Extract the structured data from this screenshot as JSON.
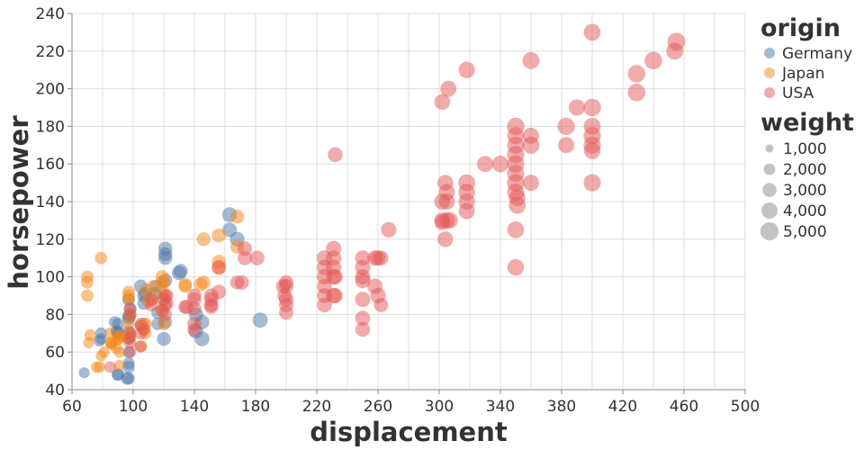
{
  "chart_data": {
    "type": "scatter",
    "xlabel": "displacement",
    "ylabel": "horsepower",
    "xlim": [
      60,
      500
    ],
    "ylim": [
      40,
      240
    ],
    "x_ticks": [
      60,
      100,
      140,
      180,
      220,
      260,
      300,
      340,
      380,
      420,
      460,
      500
    ],
    "x_tick_labels": [
      "60",
      "100",
      "140",
      "180",
      "220",
      "260",
      "300",
      "340",
      "380",
      "420",
      "460",
      "500"
    ],
    "y_ticks": [
      40,
      60,
      80,
      100,
      120,
      140,
      160,
      180,
      200,
      220,
      240
    ],
    "y_tick_labels": [
      "40",
      "60",
      "80",
      "100",
      "120",
      "140",
      "160",
      "180",
      "200",
      "220",
      "240"
    ],
    "x_grid_values": [
      60,
      80,
      100,
      120,
      140,
      160,
      180,
      200,
      220,
      240,
      260,
      280,
      300,
      320,
      340,
      360,
      380,
      400,
      420,
      440,
      460,
      480,
      500
    ],
    "grid": true,
    "color_field": "origin",
    "size_field": "weight",
    "legend_placement": "right",
    "legend": {
      "color_title": "origin",
      "color_entries": [
        {
          "name": "Germany",
          "color": "#4c78a8"
        },
        {
          "name": "Japan",
          "color": "#f58518"
        },
        {
          "name": "USA",
          "color": "#e45756"
        }
      ],
      "size_title": "weight",
      "size_entries": [
        {
          "label": "1,000",
          "value": 1000
        },
        {
          "label": "2,000",
          "value": 2000
        },
        {
          "label": "3,000",
          "value": 3000
        },
        {
          "label": "4,000",
          "value": 4000
        },
        {
          "label": "5,000",
          "value": 5000
        }
      ]
    },
    "series": [
      {
        "name": "Germany",
        "color": "#4c78a8",
        "points": [
          [
            68,
            49,
            1800
          ],
          [
            78,
            66,
            2000
          ],
          [
            79,
            67,
            1950
          ],
          [
            79,
            70,
            2050
          ],
          [
            88,
            76,
            2100
          ],
          [
            89,
            71,
            2200
          ],
          [
            90,
            48,
            2300
          ],
          [
            90,
            48,
            2150
          ],
          [
            90,
            70,
            2250
          ],
          [
            90,
            71,
            2200
          ],
          [
            90,
            75,
            2100
          ],
          [
            96,
            46,
            2400
          ],
          [
            97,
            46,
            2350
          ],
          [
            97,
            52,
            2300
          ],
          [
            97,
            54,
            2200
          ],
          [
            97,
            60,
            2250
          ],
          [
            97,
            67,
            2100
          ],
          [
            97,
            71,
            2300
          ],
          [
            97,
            78,
            2700
          ],
          [
            97,
            79,
            2400
          ],
          [
            97,
            88,
            2500
          ],
          [
            98,
            79,
            2250
          ],
          [
            98,
            83,
            2450
          ],
          [
            105,
            74,
            2200
          ],
          [
            105,
            95,
            2800
          ],
          [
            107,
            86,
            2650
          ],
          [
            107,
            90,
            2700
          ],
          [
            108,
            91,
            2650
          ],
          [
            114,
            91,
            2600
          ],
          [
            115,
            95,
            2700
          ],
          [
            116,
            75,
            2400
          ],
          [
            116,
            81,
            2450
          ],
          [
            120,
            67,
            2900
          ],
          [
            120,
            88,
            2800
          ],
          [
            121,
            76,
            2750
          ],
          [
            121,
            98,
            2950
          ],
          [
            121,
            110,
            2900
          ],
          [
            121,
            112,
            2950
          ],
          [
            121,
            115,
            3000
          ],
          [
            130,
            102,
            3150
          ],
          [
            131,
            103,
            3100
          ],
          [
            141,
            71,
            3200
          ],
          [
            141,
            80,
            3150
          ],
          [
            145,
            67,
            3250
          ],
          [
            145,
            76,
            3200
          ],
          [
            163,
            125,
            3150
          ],
          [
            163,
            133,
            3400
          ],
          [
            168,
            120,
            3250
          ],
          [
            183,
            77,
            3550
          ]
        ]
      },
      {
        "name": "Japan",
        "color": "#f58518",
        "points": [
          [
            70,
            90,
            2300
          ],
          [
            70,
            97,
            2350
          ],
          [
            70,
            100,
            2400
          ],
          [
            71,
            65,
            1900
          ],
          [
            72,
            69,
            2100
          ],
          [
            76,
            52,
            1950
          ],
          [
            78,
            52,
            2000
          ],
          [
            79,
            58,
            1800
          ],
          [
            79,
            110,
            2300
          ],
          [
            81,
            60,
            1900
          ],
          [
            85,
            65,
            2000
          ],
          [
            85,
            70,
            2050
          ],
          [
            86,
            64,
            1900
          ],
          [
            86,
            65,
            2100
          ],
          [
            89,
            62,
            2000
          ],
          [
            90,
            67,
            2100
          ],
          [
            91,
            53,
            1800
          ],
          [
            91,
            60,
            1900
          ],
          [
            91,
            67,
            1950
          ],
          [
            91,
            68,
            2000
          ],
          [
            91,
            69,
            2050
          ],
          [
            97,
            67,
            2100
          ],
          [
            97,
            75,
            2200
          ],
          [
            97,
            88,
            2150
          ],
          [
            97,
            90,
            2300
          ],
          [
            97,
            92,
            2300
          ],
          [
            98,
            68,
            2100
          ],
          [
            98,
            70,
            2150
          ],
          [
            98,
            80,
            2300
          ],
          [
            105,
            63,
            2200
          ],
          [
            105,
            74,
            2250
          ],
          [
            107,
            72,
            2300
          ],
          [
            107,
            75,
            2250
          ],
          [
            108,
            70,
            2300
          ],
          [
            108,
            75,
            2400
          ],
          [
            108,
            93,
            2400
          ],
          [
            110,
            87,
            2600
          ],
          [
            112,
            88,
            2400
          ],
          [
            113,
            95,
            2300
          ],
          [
            119,
            82,
            2600
          ],
          [
            119,
            92,
            2700
          ],
          [
            119,
            97,
            2600
          ],
          [
            119,
            100,
            2750
          ],
          [
            120,
            75,
            2600
          ],
          [
            120,
            88,
            2700
          ],
          [
            120,
            97,
            2500
          ],
          [
            134,
            95,
            2650
          ],
          [
            134,
            96,
            2700
          ],
          [
            144,
            96,
            2800
          ],
          [
            146,
            97,
            2800
          ],
          [
            146,
            120,
            2900
          ],
          [
            156,
            105,
            2900
          ],
          [
            156,
            108,
            2950
          ],
          [
            156,
            122,
            2950
          ],
          [
            168,
            116,
            2900
          ],
          [
            168,
            132,
            2950
          ]
        ]
      },
      {
        "name": "USA",
        "color": "#e45756",
        "points": [
          [
            85,
            52,
            2000
          ],
          [
            98,
            60,
            2100
          ],
          [
            98,
            65,
            2200
          ],
          [
            98,
            68,
            2200
          ],
          [
            98,
            70,
            2300
          ],
          [
            98,
            80,
            2300
          ],
          [
            98,
            83,
            2300
          ],
          [
            105,
            63,
            2200
          ],
          [
            105,
            70,
            2300
          ],
          [
            105,
            75,
            2300
          ],
          [
            107,
            72,
            2300
          ],
          [
            112,
            85,
            2600
          ],
          [
            112,
            88,
            2600
          ],
          [
            119,
            82,
            2700
          ],
          [
            121,
            80,
            2600
          ],
          [
            121,
            85,
            2700
          ],
          [
            121,
            90,
            2600
          ],
          [
            122,
            86,
            2700
          ],
          [
            122,
            90,
            2700
          ],
          [
            134,
            84,
            2900
          ],
          [
            135,
            84,
            2900
          ],
          [
            140,
            72,
            3000
          ],
          [
            140,
            75,
            3000
          ],
          [
            140,
            83,
            2950
          ],
          [
            140,
            88,
            3000
          ],
          [
            140,
            90,
            2900
          ],
          [
            151,
            84,
            3000
          ],
          [
            151,
            85,
            3000
          ],
          [
            151,
            88,
            3100
          ],
          [
            151,
            90,
            3100
          ],
          [
            156,
            92,
            3100
          ],
          [
            156,
            105,
            3200
          ],
          [
            168,
            97,
            3000
          ],
          [
            171,
            97,
            3100
          ],
          [
            173,
            110,
            3100
          ],
          [
            173,
            115,
            3100
          ],
          [
            181,
            110,
            3300
          ],
          [
            198,
            95,
            3100
          ],
          [
            199,
            90,
            3200
          ],
          [
            200,
            81,
            3100
          ],
          [
            200,
            85,
            3100
          ],
          [
            200,
            88,
            3200
          ],
          [
            200,
            95,
            3200
          ],
          [
            200,
            97,
            3200
          ],
          [
            225,
            85,
            3400
          ],
          [
            225,
            90,
            3400
          ],
          [
            225,
            95,
            3400
          ],
          [
            225,
            100,
            3500
          ],
          [
            225,
            105,
            3500
          ],
          [
            225,
            110,
            3600
          ],
          [
            231,
            90,
            3600
          ],
          [
            231,
            100,
            3600
          ],
          [
            231,
            105,
            3600
          ],
          [
            231,
            110,
            3600
          ],
          [
            231,
            115,
            3600
          ],
          [
            232,
            90,
            3500
          ],
          [
            232,
            100,
            3500
          ],
          [
            232,
            165,
            3400
          ],
          [
            250,
            72,
            3300
          ],
          [
            250,
            78,
            3400
          ],
          [
            250,
            88,
            3500
          ],
          [
            250,
            98,
            3500
          ],
          [
            250,
            100,
            3500
          ],
          [
            250,
            105,
            3500
          ],
          [
            250,
            110,
            3500
          ],
          [
            258,
            95,
            3500
          ],
          [
            258,
            110,
            3600
          ],
          [
            260,
            90,
            3600
          ],
          [
            260,
            110,
            3600
          ],
          [
            262,
            85,
            3100
          ],
          [
            262,
            110,
            3300
          ],
          [
            267,
            125,
            3600
          ],
          [
            302,
            129,
            3700
          ],
          [
            302,
            130,
            3800
          ],
          [
            302,
            140,
            3900
          ],
          [
            302,
            193,
            3800
          ],
          [
            304,
            120,
            3700
          ],
          [
            304,
            150,
            3800
          ],
          [
            305,
            130,
            4000
          ],
          [
            305,
            140,
            3900
          ],
          [
            305,
            145,
            4000
          ],
          [
            306,
            200,
            3900
          ],
          [
            307,
            130,
            3900
          ],
          [
            318,
            135,
            4000
          ],
          [
            318,
            140,
            4100
          ],
          [
            318,
            145,
            4200
          ],
          [
            318,
            150,
            4300
          ],
          [
            318,
            210,
            4100
          ],
          [
            330,
            160,
            4000
          ],
          [
            340,
            160,
            4200
          ],
          [
            350,
            105,
            4100
          ],
          [
            350,
            125,
            4200
          ],
          [
            350,
            145,
            4400
          ],
          [
            350,
            150,
            4500
          ],
          [
            350,
            155,
            4400
          ],
          [
            350,
            160,
            4400
          ],
          [
            350,
            165,
            4500
          ],
          [
            350,
            170,
            4400
          ],
          [
            350,
            175,
            4300
          ],
          [
            350,
            180,
            4600
          ],
          [
            351,
            138,
            4300
          ],
          [
            351,
            142,
            4200
          ],
          [
            360,
            150,
            4000
          ],
          [
            360,
            170,
            4400
          ],
          [
            360,
            175,
            4000
          ],
          [
            360,
            215,
            4300
          ],
          [
            383,
            170,
            4000
          ],
          [
            383,
            180,
            4500
          ],
          [
            390,
            190,
            4000
          ],
          [
            400,
            150,
            4500
          ],
          [
            400,
            167,
            4200
          ],
          [
            400,
            170,
            4500
          ],
          [
            400,
            175,
            4600
          ],
          [
            400,
            180,
            4300
          ],
          [
            400,
            190,
            4700
          ],
          [
            400,
            230,
            4300
          ],
          [
            429,
            198,
            4700
          ],
          [
            429,
            208,
            4600
          ],
          [
            440,
            215,
            4700
          ],
          [
            454,
            220,
            4400
          ],
          [
            455,
            225,
            4800
          ]
        ]
      }
    ]
  }
}
